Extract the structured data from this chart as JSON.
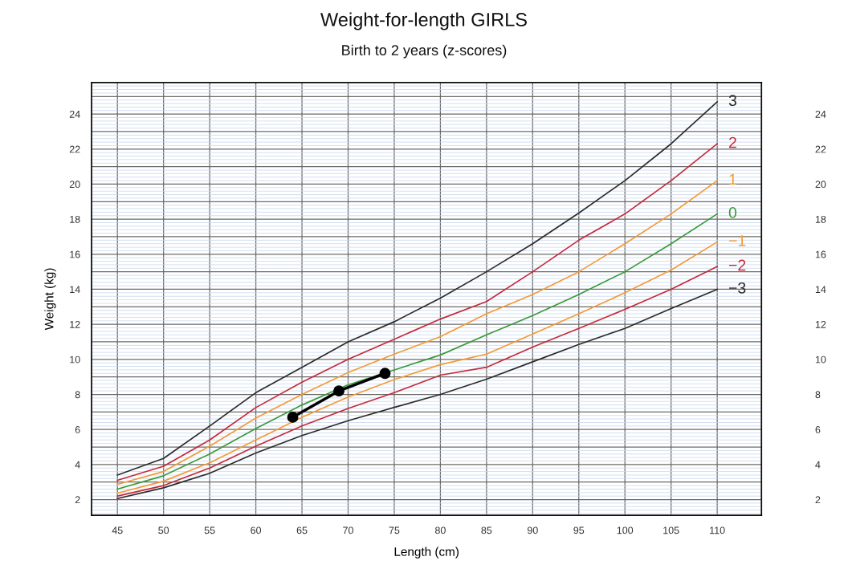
{
  "chart_data": {
    "type": "line",
    "title": "Weight-for-length GIRLS",
    "subtitle": "Birth to 2 years (z-scores)",
    "xlabel": "Length (cm)",
    "ylabel": "Weight (kg)",
    "xlim": [
      42.2,
      114.8
    ],
    "xticks": [
      45,
      50,
      55,
      60,
      65,
      70,
      75,
      80,
      85,
      90,
      95,
      100,
      105,
      110
    ],
    "ylim": [
      1.1,
      25.8
    ],
    "yticks": [
      2,
      {
        "value": 3,
        "label": null
      },
      4,
      {
        "value": 5,
        "label": null
      },
      6,
      {
        "value": 7,
        "label": null
      },
      8,
      {
        "value": 9,
        "label": null
      },
      10,
      {
        "value": 11,
        "label": null
      },
      12,
      {
        "value": 13,
        "label": null
      },
      14,
      {
        "value": 15,
        "label": null
      },
      16,
      {
        "value": 17,
        "label": null
      },
      18,
      {
        "value": 19,
        "label": null
      },
      20,
      {
        "value": 21,
        "label": null
      },
      22,
      {
        "value": 23,
        "label": null
      },
      24,
      {
        "value": 25,
        "label": null
      }
    ],
    "y2lim": [
      1.1,
      25.8
    ],
    "y2ticks": [
      2,
      4,
      6,
      8,
      10,
      12,
      14,
      16,
      18,
      20,
      22,
      24
    ],
    "x": [
      45,
      50,
      55,
      60,
      65,
      70,
      75,
      80,
      85,
      90,
      95,
      100,
      105,
      110
    ],
    "grid": true,
    "legend": false,
    "marker": "none",
    "line_style": "solid",
    "series": [
      {
        "name": "3",
        "color": "#2b2b2b",
        "values": [
          3.4,
          4.35,
          6.2,
          8.1,
          9.55,
          11.0,
          12.15,
          13.5,
          15.0,
          16.6,
          18.35,
          20.2,
          22.3,
          24.7
        ]
      },
      {
        "name": "2",
        "color": "#c42a3c",
        "values": [
          3.1,
          3.9,
          5.4,
          7.25,
          8.7,
          10.0,
          11.15,
          12.3,
          13.3,
          15.0,
          16.8,
          18.3,
          20.2,
          22.3
        ]
      },
      {
        "name": "1",
        "color": "#f39a36",
        "values": [
          2.87,
          3.6,
          5.05,
          6.65,
          8.0,
          9.25,
          10.3,
          11.3,
          12.6,
          13.7,
          15.0,
          16.6,
          18.3,
          20.2
        ]
      },
      {
        "name": "0",
        "color": "#3a9a3a",
        "values": [
          2.6,
          3.36,
          4.6,
          6.05,
          7.4,
          8.55,
          9.4,
          10.25,
          11.4,
          12.5,
          13.7,
          15.0,
          16.6,
          18.3
        ]
      },
      {
        "name": "−1",
        "color": "#f39a36",
        "values": [
          2.37,
          3.05,
          4.1,
          5.4,
          6.7,
          7.85,
          8.85,
          9.7,
          10.3,
          11.45,
          12.6,
          13.8,
          15.1,
          16.7
        ]
      },
      {
        "name": "−2",
        "color": "#c42a3c",
        "values": [
          2.2,
          2.8,
          3.8,
          5.05,
          6.2,
          7.2,
          8.1,
          9.1,
          9.55,
          10.7,
          11.77,
          12.85,
          14.0,
          15.3
        ]
      },
      {
        "name": "−3",
        "color": "#2b2b2b",
        "values": [
          2.06,
          2.67,
          3.5,
          4.66,
          5.65,
          6.5,
          7.26,
          8.0,
          8.87,
          9.86,
          10.85,
          11.77,
          12.9,
          14.0
        ]
      },
      {
        "color": "#000000",
        "x": [
          64,
          69,
          74
        ],
        "values": [
          6.7,
          8.2,
          9.2
        ],
        "marker": "circle"
      }
    ]
  }
}
